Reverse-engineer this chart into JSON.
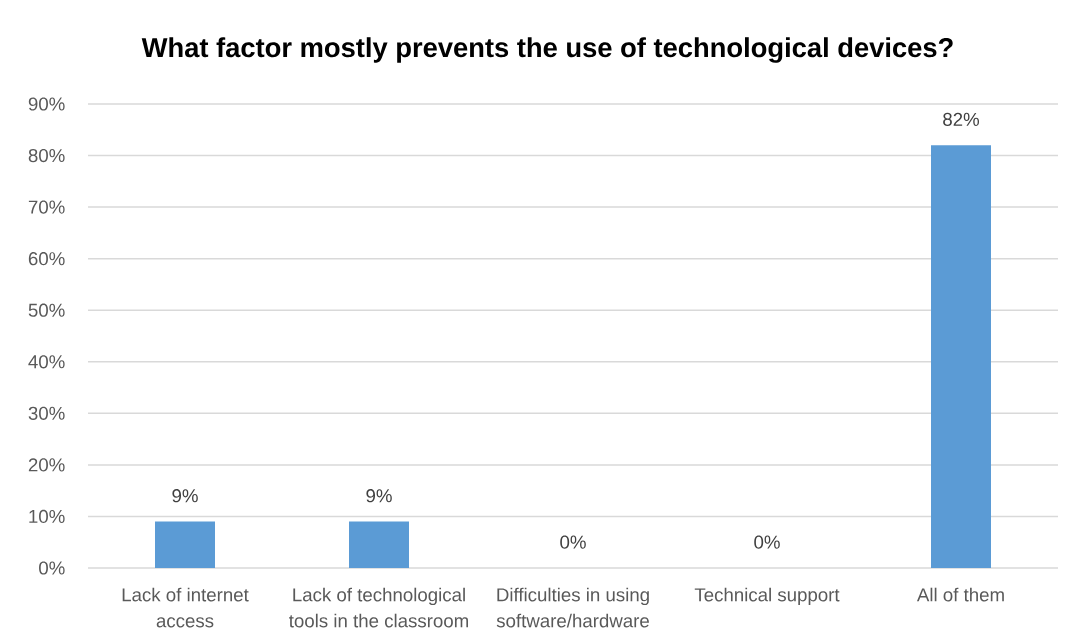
{
  "chart_data": {
    "type": "bar",
    "title": "What factor mostly prevents the use of technological devices?",
    "categories": [
      "Lack of internet access",
      "Lack of technological tools in the classroom",
      "Difficulties in using software/hardware",
      "Technical support",
      "All of them"
    ],
    "values": [
      9,
      9,
      0,
      0,
      82
    ],
    "color": "#5b9bd5",
    "value_labels": [
      "9%",
      "9%",
      "0%",
      "0%",
      "82%"
    ],
    "ylim": [
      0,
      90
    ],
    "yticks": [
      {
        "value": 0,
        "label": "0%"
      },
      {
        "value": 10,
        "label": "10%"
      },
      {
        "value": 20,
        "label": "20%"
      },
      {
        "value": 30,
        "label": "30%"
      },
      {
        "value": 40,
        "label": "40%"
      },
      {
        "value": 50,
        "label": "50%"
      },
      {
        "value": 60,
        "label": "60%"
      },
      {
        "value": 70,
        "label": "70%"
      },
      {
        "value": 80,
        "label": "80%"
      },
      {
        "value": 90,
        "label": "90%"
      }
    ],
    "grid": "y"
  }
}
